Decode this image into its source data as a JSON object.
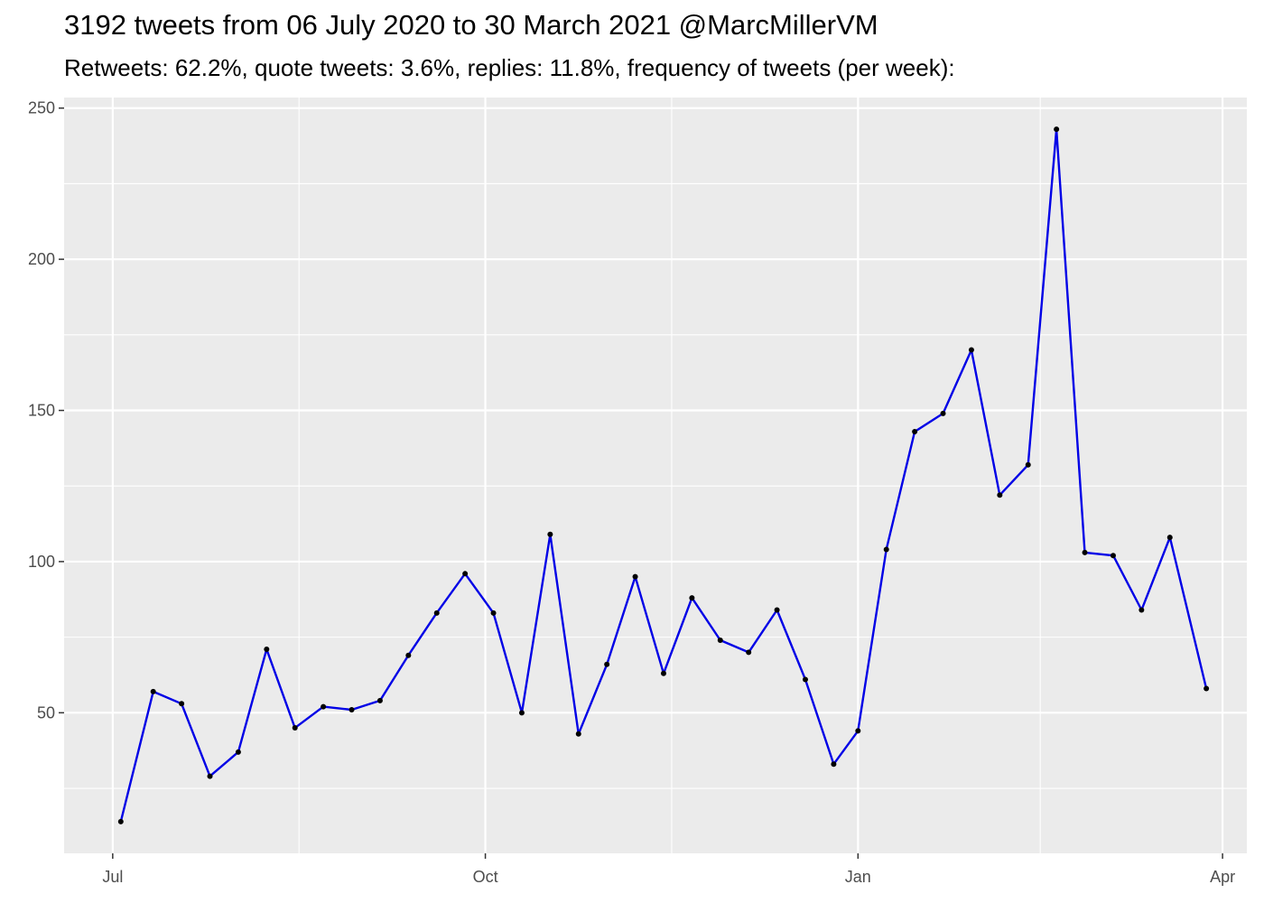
{
  "chart_data": {
    "type": "line",
    "title": "3192 tweets from 06 July 2020 to 30 March 2021 @MarcMillerVM",
    "subtitle": "Retweets: 62.2%, quote tweets: 3.6%, replies: 11.8%, frequency of tweets (per week):",
    "xlabel": "",
    "ylabel": "",
    "x_ticks": [
      {
        "label": "Jul",
        "date": "2020-07-01"
      },
      {
        "label": "Oct",
        "date": "2020-10-01"
      },
      {
        "label": "Jan",
        "date": "2021-01-01"
      },
      {
        "label": "Apr",
        "date": "2021-04-01"
      }
    ],
    "y_ticks": [
      50,
      100,
      150,
      200,
      250
    ],
    "xlim": [
      "2020-06-19",
      "2021-04-07"
    ],
    "ylim": [
      3.5,
      253.5
    ],
    "grid": true,
    "colors": {
      "line": "#0000e6",
      "points": "#000000",
      "panel": "#ebebeb",
      "grid": "#ffffff"
    },
    "series": [
      {
        "x": [
          "2020-07-03",
          "2020-07-11",
          "2020-07-18",
          "2020-07-25",
          "2020-08-01",
          "2020-08-08",
          "2020-08-15",
          "2020-08-22",
          "2020-08-29",
          "2020-09-05",
          "2020-09-12",
          "2020-09-19",
          "2020-09-26",
          "2020-10-03",
          "2020-10-10",
          "2020-10-17",
          "2020-10-24",
          "2020-10-31",
          "2020-11-07",
          "2020-11-14",
          "2020-11-21",
          "2020-11-28",
          "2020-12-05",
          "2020-12-12",
          "2020-12-19",
          "2020-12-26",
          "2021-01-01",
          "2021-01-08",
          "2021-01-15",
          "2021-01-22",
          "2021-01-29",
          "2021-02-05",
          "2021-02-12",
          "2021-02-19",
          "2021-02-26",
          "2021-03-05",
          "2021-03-12",
          "2021-03-19",
          "2021-03-28"
        ],
        "values": [
          14,
          57,
          53,
          29,
          37,
          71,
          45,
          52,
          51,
          54,
          69,
          83,
          96,
          83,
          50,
          109,
          43,
          66,
          95,
          63,
          88,
          74,
          70,
          84,
          61,
          33,
          44,
          104,
          143,
          149,
          170,
          122,
          132,
          243,
          103,
          102,
          84,
          108,
          58
        ]
      }
    ]
  }
}
